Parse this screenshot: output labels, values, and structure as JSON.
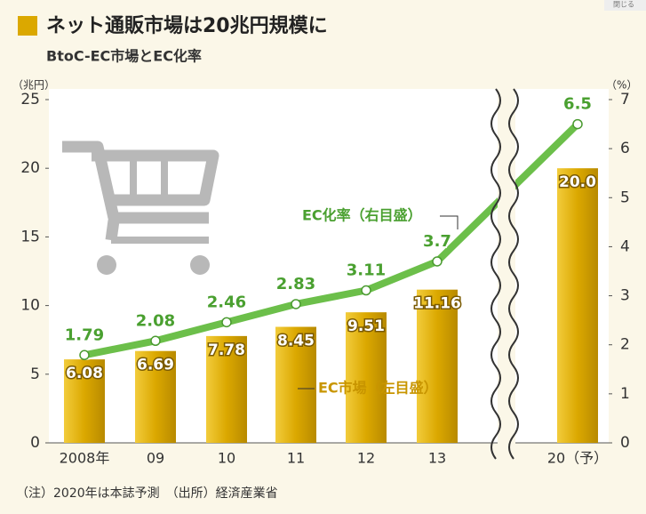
{
  "chart_data": {
    "type": "bar_line",
    "title": "ネット通販市場は20兆円規模に",
    "subtitle": "BtoC-EC市場とEC化率",
    "close_label": "閉じる",
    "y_label": "（兆円）",
    "y2_label": "（%）",
    "categories": [
      "2008年",
      "09",
      "10",
      "11",
      "12",
      "13",
      "20（予）"
    ],
    "series": [
      {
        "name": "EC市場（左目盛）",
        "type": "bar",
        "axis": "y",
        "color": "#dba800",
        "values": [
          6.08,
          6.69,
          7.78,
          8.45,
          9.51,
          11.16,
          20
        ],
        "value_labels": [
          "6.08",
          "6.69",
          "7.78",
          "8.45",
          "9.51",
          "11.16",
          "20.0"
        ]
      },
      {
        "name": "EC化率（右目盛）",
        "type": "line",
        "axis": "y2",
        "color": "#6cbf4a",
        "values": [
          1.79,
          2.08,
          2.46,
          2.83,
          3.11,
          3.7,
          6.5
        ]
      }
    ],
    "ylim": [
      0,
      25
    ],
    "yticks": [
      0,
      5,
      10,
      15,
      20,
      25
    ],
    "y2lim": [
      0,
      7
    ],
    "y2ticks": [
      0,
      1,
      2,
      3,
      4,
      5,
      6,
      7
    ],
    "note": "（注）2020年は本誌予測　（出所）経済産業省"
  }
}
